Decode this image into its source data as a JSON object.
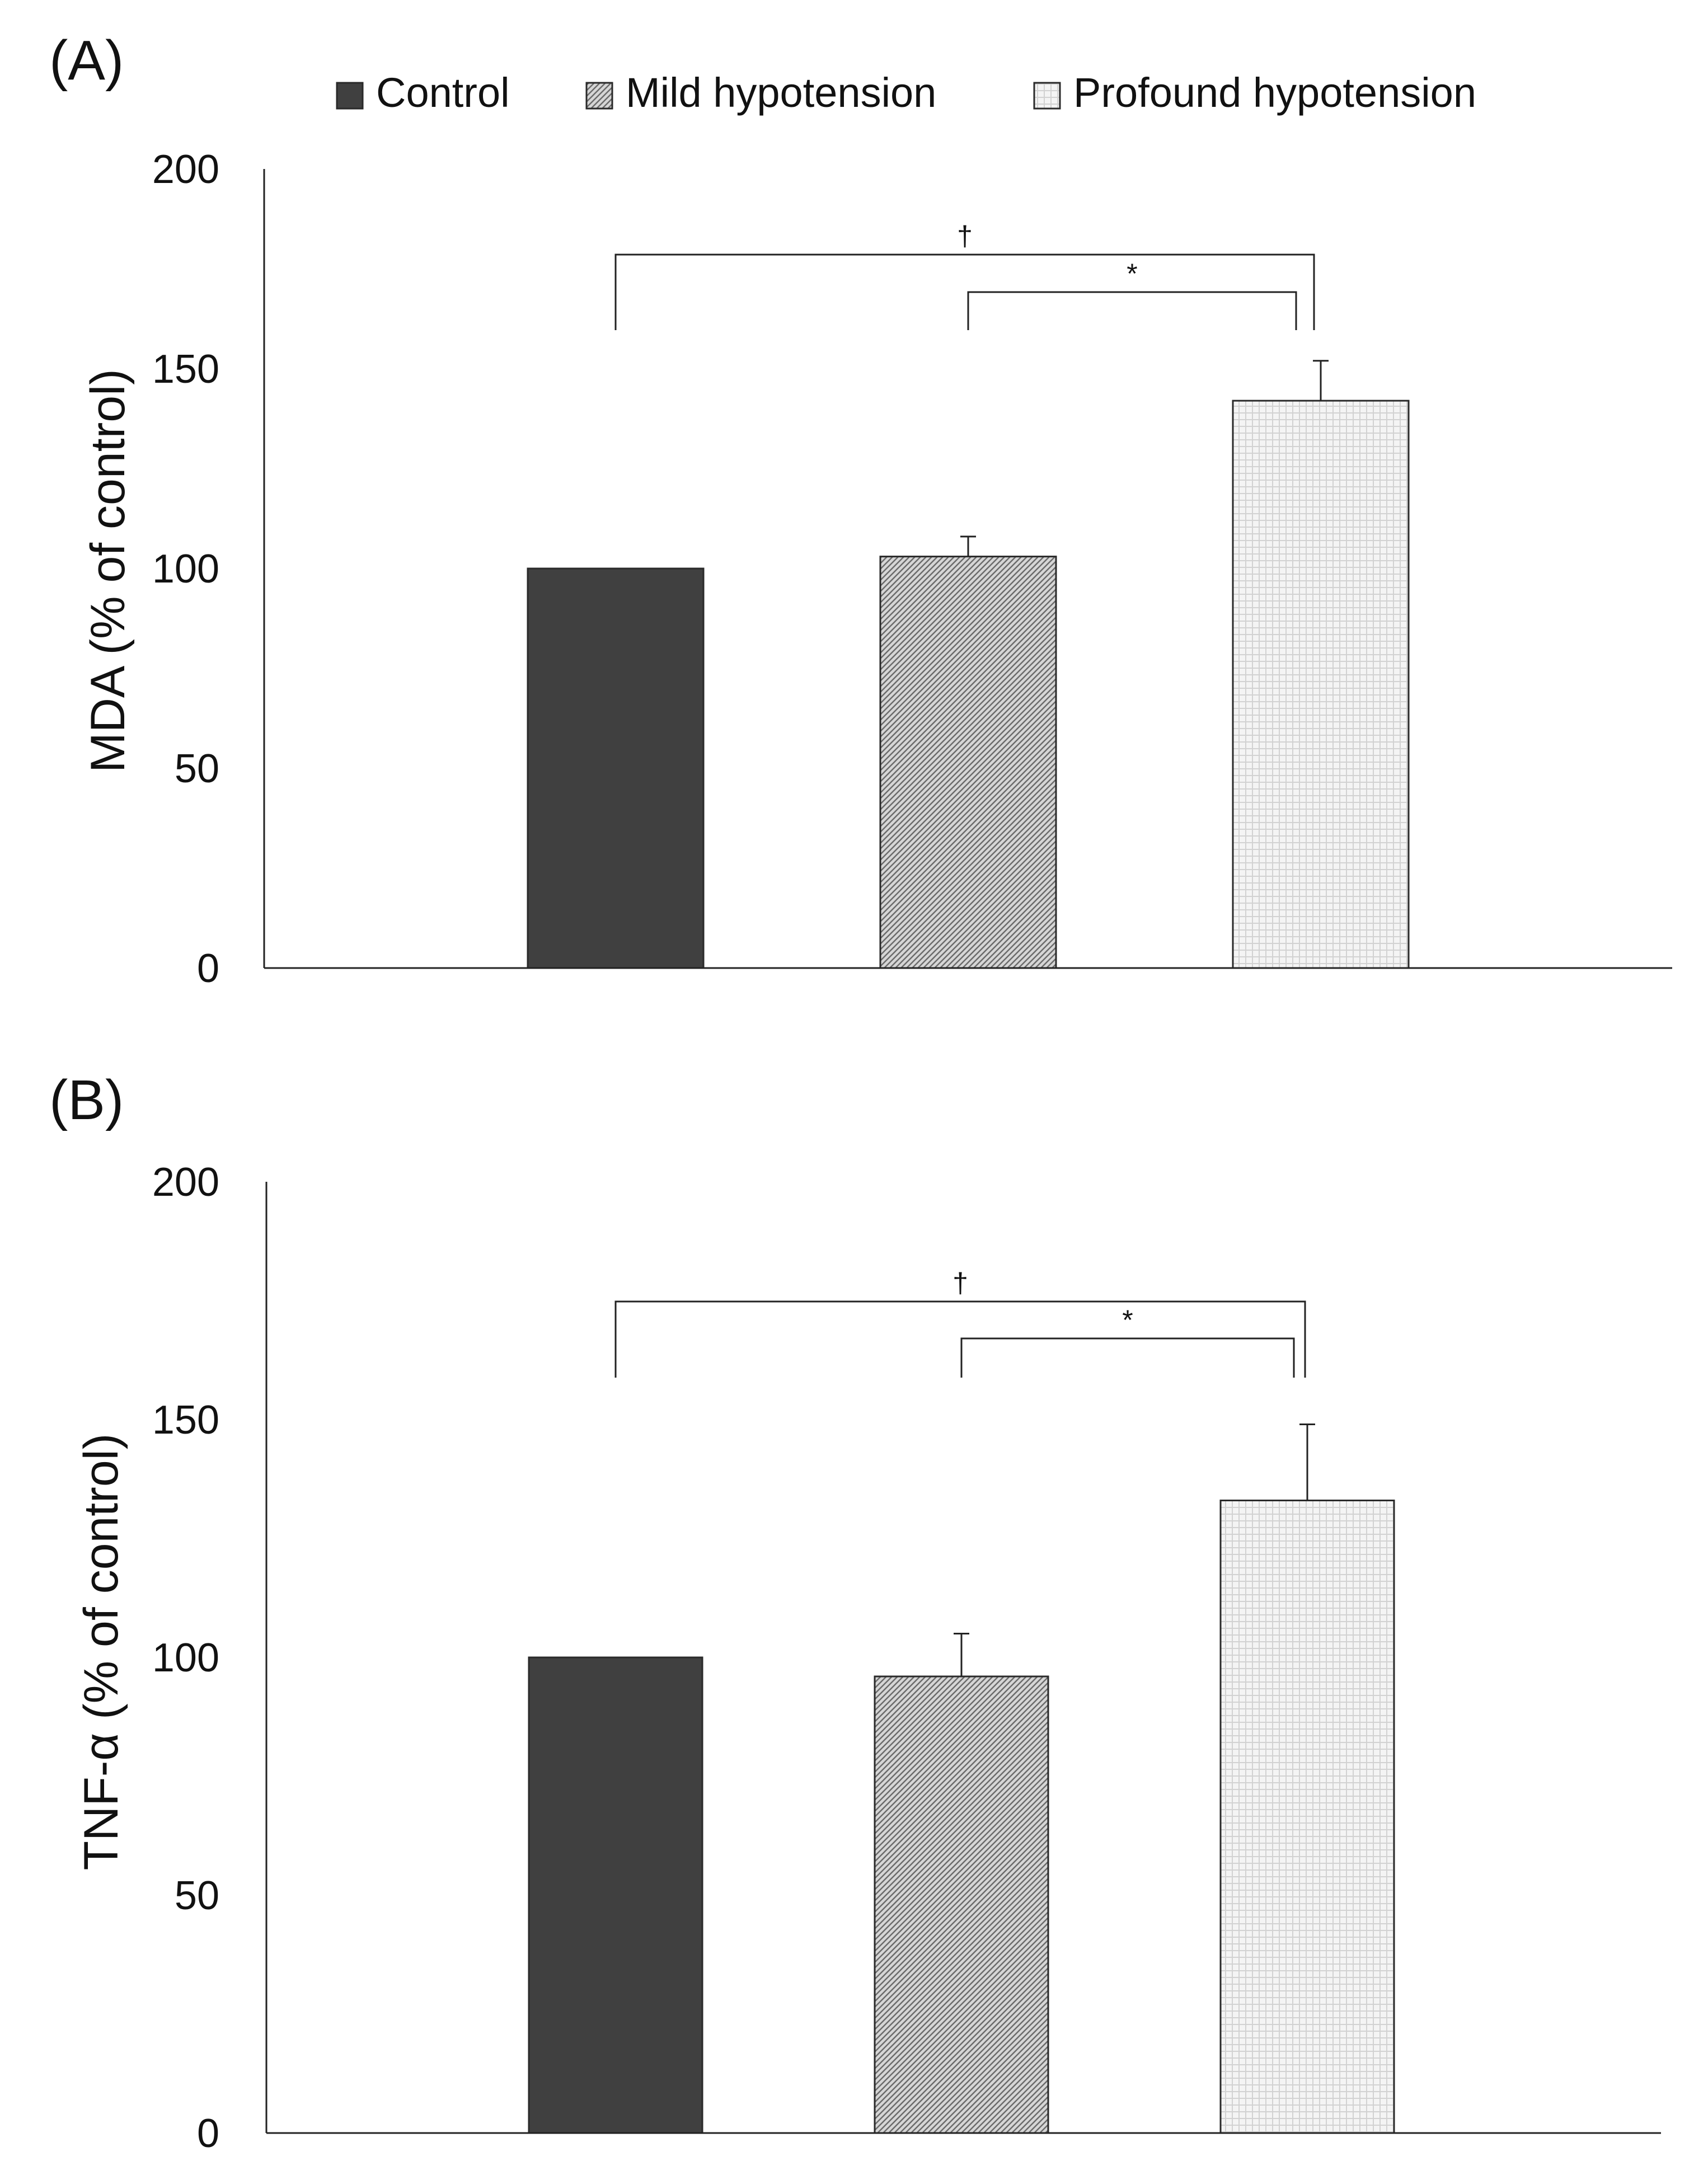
{
  "legend": {
    "items": [
      {
        "label": "Control",
        "color": "#404040",
        "pattern": "solid"
      },
      {
        "label": "Mild hypotension",
        "color": "#c8c8c8",
        "pattern": "diagonal"
      },
      {
        "label": "Profound hypotension",
        "color": "#f2f2f2",
        "pattern": "grid"
      }
    ]
  },
  "chart_data": [
    {
      "type": "bar",
      "panel_label": "(A)",
      "ylabel": "MDA (% of control)",
      "xlabel": "",
      "ylim": [
        0,
        200
      ],
      "yticks": [
        0,
        50,
        100,
        150,
        200
      ],
      "categories": [
        "Control",
        "Mild hypotension",
        "Profound hypotension"
      ],
      "values": [
        100,
        103,
        142
      ],
      "errors": [
        0,
        5,
        10
      ],
      "significance": [
        {
          "from": 0,
          "to": 2,
          "symbol": "†"
        },
        {
          "from": 1,
          "to": 2,
          "symbol": "*"
        }
      ]
    },
    {
      "type": "bar",
      "panel_label": "(B)",
      "ylabel": "TNF-α (% of control)",
      "xlabel": "",
      "ylim": [
        0,
        200
      ],
      "yticks": [
        0,
        50,
        100,
        150,
        200
      ],
      "categories": [
        "Control",
        "Mild hypotension",
        "Profound hypotension"
      ],
      "values": [
        100,
        96,
        133
      ],
      "errors": [
        0,
        9,
        16
      ],
      "significance": [
        {
          "from": 0,
          "to": 2,
          "symbol": "†"
        },
        {
          "from": 1,
          "to": 2,
          "symbol": "*"
        }
      ]
    }
  ]
}
